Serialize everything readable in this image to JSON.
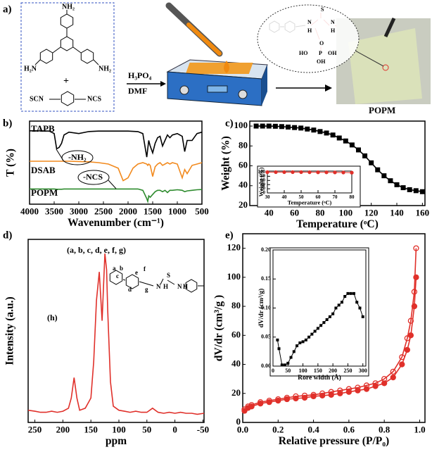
{
  "scheme": {
    "label": "a)",
    "tapb_nh2_top": "NH₂",
    "tapb_h2n_left": "H₂N",
    "tapb_nh2_right": "NH₂",
    "plus": "+",
    "scn": "SCN",
    "ncs": "NCS",
    "reagent": "H₃PO₄",
    "solvent": "DMF",
    "product": "POPM",
    "mol_s": "S",
    "mol_n1": "N",
    "mol_n2": "N",
    "mol_h1": "H",
    "mol_h2": "H",
    "mol_o1": "O",
    "mol_ho": "HO",
    "mol_p": "P",
    "mol_oh": "OH",
    "mol_oh2": "OH"
  },
  "chart_data": [
    {
      "type": "line",
      "panel_label": "b)",
      "xlabel": "Wavenumber (cm⁻¹)",
      "ylabel": "T (%)",
      "x": [
        4000,
        3800,
        3600,
        3500,
        3450,
        3400,
        3350,
        3300,
        3200,
        3000,
        2800,
        2600,
        2400,
        2200,
        2100,
        2000,
        1900,
        1800,
        1700,
        1620,
        1600,
        1580,
        1550,
        1500,
        1450,
        1400,
        1350,
        1300,
        1250,
        1200,
        1150,
        1100,
        1000,
        900,
        850,
        800,
        700,
        600,
        500
      ],
      "xlim": [
        4000,
        500
      ],
      "xticks": [
        4000,
        3500,
        3000,
        2500,
        2000,
        1500,
        1000,
        500
      ],
      "ylim": [
        0,
        3
      ],
      "series": [
        {
          "name": "TAPB",
          "color": "#000000",
          "values": [
            2.65,
            2.65,
            2.64,
            2.55,
            2.0,
            2.05,
            2.2,
            2.5,
            2.6,
            2.55,
            2.62,
            2.64,
            2.64,
            2.64,
            2.64,
            2.64,
            2.63,
            2.62,
            2.55,
            1.7,
            2.0,
            2.3,
            2.1,
            1.85,
            2.2,
            2.4,
            2.45,
            2.1,
            2.3,
            2.5,
            2.4,
            2.5,
            2.55,
            2.45,
            1.9,
            2.3,
            2.3,
            2.55,
            2.6
          ]
        },
        {
          "name": "DSAB",
          "color": "#f28a1e",
          "values": [
            1.55,
            1.55,
            1.55,
            1.55,
            1.55,
            1.55,
            1.55,
            1.55,
            1.55,
            1.54,
            1.53,
            1.5,
            1.45,
            1.3,
            0.85,
            0.95,
            1.3,
            1.45,
            1.5,
            1.45,
            1.4,
            1.45,
            1.4,
            1.0,
            1.35,
            1.45,
            1.5,
            1.4,
            1.45,
            1.5,
            1.45,
            1.5,
            1.45,
            0.95,
            1.25,
            1.1,
            1.4,
            1.45,
            1.5
          ]
        },
        {
          "name": "POPM",
          "color": "#2e8b2e",
          "values": [
            0.55,
            0.55,
            0.55,
            0.55,
            0.54,
            0.54,
            0.54,
            0.55,
            0.55,
            0.55,
            0.55,
            0.55,
            0.55,
            0.55,
            0.55,
            0.55,
            0.55,
            0.55,
            0.5,
            0.2,
            0.1,
            0.3,
            0.25,
            0.35,
            0.45,
            0.5,
            0.5,
            0.45,
            0.5,
            0.42,
            0.5,
            0.5,
            0.52,
            0.5,
            0.45,
            0.48,
            0.5,
            0.52,
            0.53
          ]
        }
      ],
      "annotations": [
        "-NH₂",
        "-NCS"
      ]
    },
    {
      "type": "line",
      "panel_label": "c)",
      "xlabel": "Temperature (ᵒC)",
      "ylabel": "Weight (%)",
      "x": [
        30,
        35,
        40,
        45,
        50,
        55,
        60,
        65,
        70,
        75,
        80,
        85,
        90,
        95,
        100,
        105,
        110,
        115,
        120,
        125,
        130,
        135,
        140,
        145,
        150,
        155,
        160
      ],
      "values": [
        100,
        100,
        100,
        99.8,
        99.5,
        99,
        98.5,
        98,
        97,
        96,
        94.5,
        93,
        91,
        88,
        85,
        81,
        76,
        70,
        63,
        56,
        50,
        45,
        41,
        38,
        36,
        35,
        34
      ],
      "color": "#000000",
      "marker": "square",
      "xlim": [
        25,
        162
      ],
      "xticks": [
        40,
        60,
        80,
        100,
        120,
        140,
        160
      ],
      "ylim": [
        20,
        105
      ],
      "yticks": [
        20,
        40,
        60,
        80,
        100
      ]
    },
    {
      "type": "line",
      "xlabel": "Temperature (ᵒC)",
      "ylabel": "Weight (%)",
      "x": [
        30,
        35,
        40,
        45,
        50,
        55,
        60,
        65,
        70,
        75,
        80
      ],
      "values": [
        100,
        100,
        100,
        100,
        99.8,
        99.5,
        99.2,
        99,
        98.6,
        98.2,
        97.5
      ],
      "color": "#e0302a",
      "marker": "circle",
      "xlim": [
        30,
        80
      ],
      "xticks": [
        30,
        40,
        50,
        60,
        70,
        80
      ],
      "ylim": [
        0,
        105
      ],
      "yticks": [
        0,
        20,
        40,
        60,
        80,
        100
      ]
    },
    {
      "type": "line",
      "panel_label": "d)",
      "xlabel": "ppm",
      "ylabel": "Intensity (a.u.)",
      "x": [
        262,
        250,
        240,
        230,
        220,
        210,
        200,
        190,
        185,
        180,
        175,
        170,
        160,
        150,
        145,
        140,
        135,
        130,
        127,
        125,
        122,
        120,
        115,
        110,
        100,
        90,
        80,
        70,
        60,
        50,
        40,
        30,
        20,
        10,
        0,
        -10,
        -20,
        -30,
        -40,
        -52
      ],
      "values": [
        0.06,
        0.055,
        0.05,
        0.05,
        0.055,
        0.05,
        0.055,
        0.07,
        0.12,
        0.22,
        0.12,
        0.06,
        0.07,
        0.12,
        0.3,
        0.6,
        0.74,
        0.5,
        0.7,
        0.83,
        0.75,
        0.55,
        0.2,
        0.08,
        0.06,
        0.055,
        0.05,
        0.055,
        0.05,
        0.05,
        0.07,
        0.05,
        0.045,
        0.05,
        0.045,
        0.05,
        0.045,
        0.045,
        0.04,
        0.045
      ],
      "color": "#e0302a",
      "xlim": [
        262,
        -52
      ],
      "xticks": [
        250,
        200,
        150,
        100,
        50,
        0,
        -50
      ],
      "ylim": [
        0,
        0.9
      ],
      "annotations": [
        "(a, b, c, d, e, f, g)",
        "(h)",
        "a",
        "b",
        "c",
        "d",
        "e",
        "f",
        "g",
        "N",
        "H",
        "S",
        "N",
        "H"
      ]
    },
    {
      "type": "line",
      "panel_label": "e)",
      "xlabel": "Relative pressure (P/P₀)",
      "ylabel": "dV/dr (cm³/g )",
      "x": [
        0.01,
        0.03,
        0.05,
        0.1,
        0.15,
        0.2,
        0.25,
        0.3,
        0.35,
        0.4,
        0.45,
        0.5,
        0.55,
        0.6,
        0.65,
        0.7,
        0.75,
        0.8,
        0.85,
        0.9,
        0.93,
        0.95,
        0.97,
        0.98
      ],
      "series": [
        {
          "color": "#e0302a",
          "marker": "circle",
          "values": [
            8,
            10,
            11,
            13,
            14,
            15,
            16,
            16.5,
            17,
            18,
            18.5,
            19,
            20,
            21,
            22,
            23,
            25,
            27,
            31,
            40,
            50,
            60,
            80,
            100
          ]
        },
        {
          "color": "#e0302a",
          "marker": "open_circle",
          "values": [
            9,
            11,
            12,
            14,
            15,
            16,
            17,
            18,
            18.5,
            19,
            20,
            21,
            22,
            23,
            24,
            25.5,
            27,
            30,
            35,
            45,
            58,
            70,
            90,
            120
          ]
        }
      ],
      "xlim": [
        0,
        1.03
      ],
      "xticks": [
        {
          "value": 0,
          "label": "0.0"
        },
        0.2,
        0.4,
        0.6,
        0.8,
        {
          "value": 1,
          "label": "1.0"
        }
      ],
      "ylim": [
        0,
        130
      ],
      "yticks": [
        0,
        20,
        40,
        60,
        80,
        100,
        120
      ]
    },
    {
      "type": "line",
      "xlabel": "Rore width (Å)",
      "ylabel": "dV/dr (cm³/g)",
      "x": [
        15,
        20,
        30,
        40,
        50,
        60,
        70,
        80,
        90,
        100,
        110,
        120,
        130,
        140,
        150,
        160,
        170,
        180,
        190,
        200,
        210,
        220,
        230,
        240,
        250,
        260,
        270,
        280,
        290,
        300
      ],
      "values": [
        0.045,
        0.03,
        0.002,
        0.002,
        0.005,
        0.015,
        0.025,
        0.035,
        0.04,
        0.042,
        0.045,
        0.05,
        0.055,
        0.06,
        0.065,
        0.07,
        0.075,
        0.08,
        0.085,
        0.09,
        0.1,
        0.105,
        0.11,
        0.12,
        0.125,
        0.125,
        0.125,
        0.11,
        0.1,
        0.085
      ],
      "color": "#000000",
      "marker": "square",
      "xlim": [
        0,
        310
      ],
      "xticks": [
        0,
        50,
        100,
        150,
        200,
        250,
        300
      ],
      "ylim": [
        0,
        0.2
      ],
      "yticks": [
        {
          "value": 0,
          "label": "0.00"
        },
        0.05,
        {
          "value": 0.1,
          "label": "0.10"
        },
        0.15,
        {
          "value": 0.2,
          "label": "0.20"
        }
      ]
    }
  ]
}
